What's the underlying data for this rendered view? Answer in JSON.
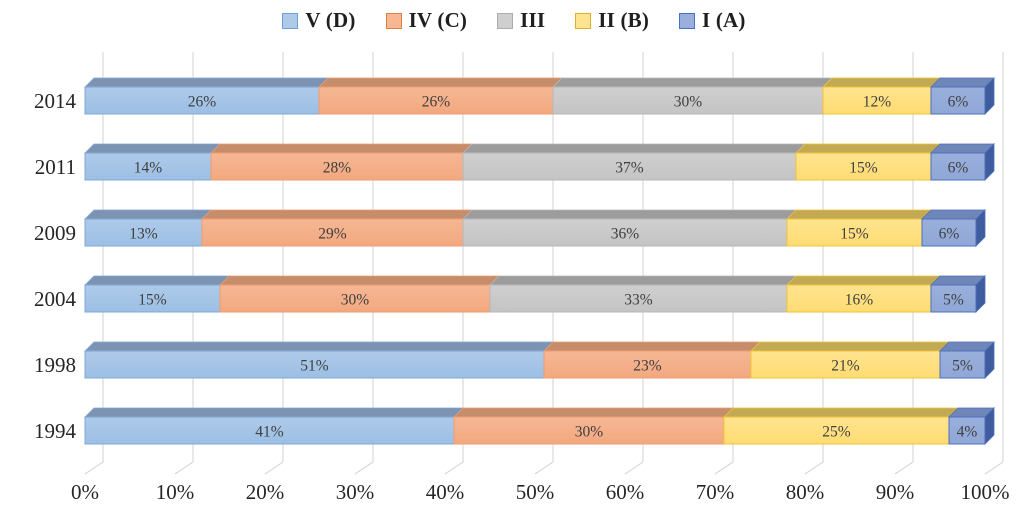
{
  "chart_data": {
    "type": "bar",
    "subtype": "stacked-horizontal-3d",
    "title": "",
    "xlabel": "",
    "ylabel": "",
    "xlim": [
      0,
      100
    ],
    "grid": true,
    "legend_position": "top",
    "value_suffix": "%",
    "categories": [
      "2014",
      "2011",
      "2009",
      "2004",
      "1998",
      "1994"
    ],
    "x_ticks": [
      "0%",
      "10%",
      "20%",
      "30%",
      "40%",
      "50%",
      "60%",
      "70%",
      "80%",
      "90%",
      "100%"
    ],
    "series": [
      {
        "name": "V (D)",
        "values": [
          26,
          14,
          13,
          15,
          51,
          41
        ],
        "colors": {
          "front": "#AECAE9",
          "front2": "#9CBFE4",
          "border": "#7FA7D8",
          "top": "#7C94B2",
          "side": "#5C7CA8"
        }
      },
      {
        "name": "IV (C)",
        "values": [
          26,
          28,
          29,
          30,
          23,
          30
        ],
        "colors": {
          "front": "#F6B795",
          "front2": "#F2A87E",
          "border": "#EE9C71",
          "top": "#C68D6B",
          "side": "#BB7F55"
        }
      },
      {
        "name": "III",
        "values": [
          30,
          37,
          36,
          33,
          0,
          0
        ],
        "colors": {
          "front": "#CFCFCF",
          "front2": "#C4C4C4",
          "border": "#B7B7B7",
          "top": "#9C9C9C",
          "side": "#8F8F8F"
        }
      },
      {
        "name": "II (B)",
        "values": [
          12,
          15,
          15,
          16,
          21,
          25
        ],
        "colors": {
          "front": "#FFE48F",
          "front2": "#FFDC73",
          "border": "#F0C435",
          "top": "#C2A953",
          "side": "#B59B3E"
        }
      },
      {
        "name": "I (A)",
        "values": [
          6,
          6,
          6,
          5,
          5,
          4
        ],
        "colors": {
          "front": "#9AAFDB",
          "front2": "#8FA7D7",
          "border": "#4C6FBE",
          "top": "#6F87B8",
          "side": "#3E5C9E"
        }
      }
    ],
    "legend_swatch_borders": [
      "#6FA0D0",
      "#E07E3C",
      "#ACACAC",
      "#DFAE2F",
      "#4472C4"
    ]
  },
  "style_colors": {
    "gridline": "#D9D9D9",
    "axis_text": "#262626",
    "segment_label_text": "#3F3F3F",
    "background": "#FFFFFF"
  }
}
